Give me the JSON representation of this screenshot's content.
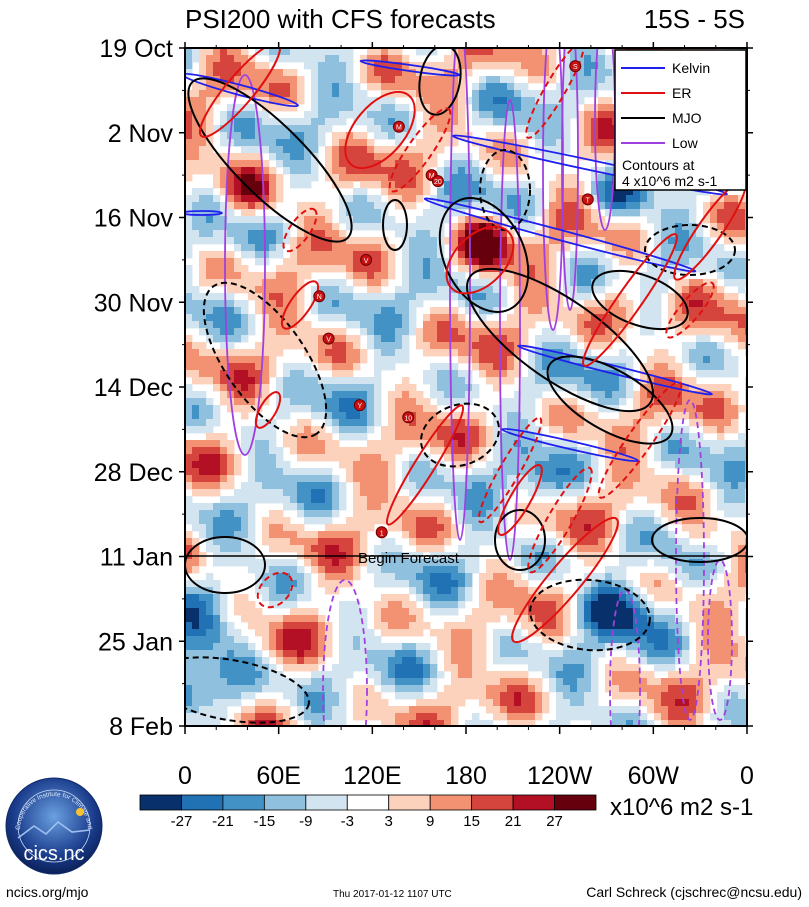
{
  "chart_data": {
    "type": "heatmap",
    "title": "PSI200 with CFS forecasts",
    "region": "15S - 5S",
    "x_ticks": [
      "0",
      "60E",
      "120E",
      "180",
      "120W",
      "60W",
      "0"
    ],
    "x_range_deg": [
      0,
      360
    ],
    "y_ticks": [
      "19 Oct",
      "2 Nov",
      "16 Nov",
      "30 Nov",
      "14 Dec",
      "28 Dec",
      "11 Jan",
      "25 Jan",
      "8 Feb"
    ],
    "y_range_days": [
      0,
      112
    ],
    "forecast_line_day": 84,
    "forecast_label": "Begin Forecast",
    "colorbar": {
      "levels": [
        "-27",
        "-21",
        "-15",
        "-9",
        "-3",
        "3",
        "9",
        "15",
        "21",
        "27"
      ],
      "colors": [
        "#08306b",
        "#2171b5",
        "#4292c6",
        "#8fc1de",
        "#d3e4f1",
        "#ffffff",
        "#fdd2bd",
        "#f29272",
        "#d6453d",
        "#b30f25",
        "#67000d"
      ],
      "units": "x10^6 m2 s-1"
    },
    "legend": {
      "entries": [
        {
          "name": "Kelvin",
          "color": "#2020ee"
        },
        {
          "name": "ER",
          "color": "#e01010"
        },
        {
          "name": "MJO",
          "color": "#000000"
        },
        {
          "name": "Low",
          "color": "#a040e0"
        }
      ],
      "note": "Contours at 4 x10^6 m2 s-1"
    },
    "tc_markers": [
      {
        "label": "S",
        "lon": 250,
        "day": 3
      },
      {
        "label": "M",
        "lon": 137,
        "day": 13
      },
      {
        "label": "M",
        "lon": 158,
        "day": 21
      },
      {
        "label": "20",
        "lon": 162,
        "day": 22
      },
      {
        "label": "T",
        "lon": 258,
        "day": 25
      },
      {
        "label": "V",
        "lon": 116,
        "day": 35
      },
      {
        "label": "N",
        "lon": 86,
        "day": 41
      },
      {
        "label": "V",
        "lon": 92,
        "day": 48
      },
      {
        "label": "Y",
        "lon": 112,
        "day": 59
      },
      {
        "label": "10",
        "lon": 143,
        "day": 61
      },
      {
        "label": "1",
        "lon": 126,
        "day": 80
      }
    ]
  },
  "footer": {
    "left": "ncics.org/mjo",
    "center": "Thu 2017-01-12 1107 UTC",
    "right": "Carl Schreck (cjschrec@ncsu.edu)",
    "logo_text": "cics.nc",
    "logo_ring": "Cooperative Institute for Climate and Satellites"
  },
  "colors": {
    "kelvin": "#2020ee",
    "er": "#e01010",
    "mjo": "#000000",
    "low": "#a040e0"
  }
}
